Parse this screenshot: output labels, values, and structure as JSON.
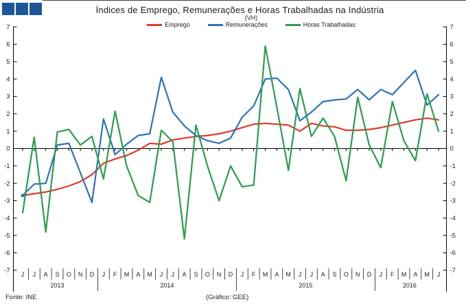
{
  "header": {
    "title": "Índices de Emprego, Remunerações e Horas Trabalhadas na Indústria",
    "subtitle": "(VH)",
    "logo_color": "#1b5796"
  },
  "footer": {
    "source": "Fonte: INE",
    "credit": "(Gráfico: GEE)"
  },
  "chart_data": {
    "type": "line",
    "title": "Índices de Emprego, Remunerações e Horas Trabalhadas na Indústria",
    "subtitle": "(VH)",
    "ylim": [
      -7,
      7
    ],
    "yticks": [
      7,
      6,
      5,
      4,
      3,
      2,
      1,
      0,
      -1,
      -2,
      -3,
      -4,
      -5,
      -6,
      -7
    ],
    "grid": "zero-line-only",
    "legend_position": "top-center",
    "axis_color": "#000000",
    "x_months": [
      "J",
      "J",
      "A",
      "S",
      "O",
      "N",
      "D",
      "J",
      "F",
      "M",
      "A",
      "M",
      "J",
      "J",
      "A",
      "S",
      "O",
      "N",
      "D",
      "J",
      "F",
      "M",
      "A",
      "M",
      "J",
      "J",
      "A",
      "S",
      "O",
      "N",
      "D",
      "J",
      "F",
      "M",
      "A",
      "M",
      "J"
    ],
    "years": [
      {
        "label": "2013",
        "count": 7
      },
      {
        "label": "2014",
        "count": 12
      },
      {
        "label": "2015",
        "count": 12
      },
      {
        "label": "2016",
        "count": 6
      }
    ],
    "x_range_note": "Jun 2013 - Jun 2016, monthly",
    "series": [
      {
        "name": "Emprego",
        "color": "#dd3b2c",
        "values": [
          -2.7,
          -2.6,
          -2.5,
          -2.35,
          -2.15,
          -1.9,
          -1.5,
          -0.85,
          -0.6,
          -0.4,
          -0.1,
          0.3,
          0.25,
          0.5,
          0.6,
          0.7,
          0.75,
          0.85,
          1.0,
          1.2,
          1.4,
          1.45,
          1.4,
          1.35,
          1.0,
          1.45,
          1.3,
          1.25,
          1.05,
          1.05,
          1.1,
          1.2,
          1.35,
          1.5,
          1.65,
          1.75,
          1.65
        ]
      },
      {
        "name": "Remunerações",
        "color": "#2c73b8",
        "values": [
          -2.7,
          -2.05,
          -2.0,
          0.2,
          0.3,
          -1.4,
          -3.1,
          1.7,
          -0.35,
          0.25,
          0.75,
          0.85,
          4.1,
          2.1,
          1.3,
          0.75,
          0.45,
          0.3,
          0.6,
          1.8,
          2.45,
          4.0,
          4.05,
          3.4,
          1.6,
          2.1,
          2.7,
          2.8,
          2.85,
          3.4,
          2.8,
          3.4,
          3.1,
          3.8,
          4.5,
          2.5,
          3.1
        ]
      },
      {
        "name": "Horas Trabalhadas",
        "color": "#27a04c",
        "values": [
          -3.7,
          0.65,
          -4.8,
          0.95,
          1.1,
          0.2,
          0.7,
          -1.75,
          2.15,
          -1.0,
          -2.7,
          -3.1,
          1.05,
          0.4,
          -5.2,
          1.35,
          -1.0,
          -3.0,
          -1.0,
          -2.2,
          -2.1,
          5.9,
          2.4,
          -1.25,
          3.45,
          0.7,
          1.75,
          0.7,
          -1.85,
          2.95,
          0.2,
          -1.1,
          2.7,
          0.45,
          -0.7,
          3.15,
          1.0
        ]
      }
    ]
  }
}
